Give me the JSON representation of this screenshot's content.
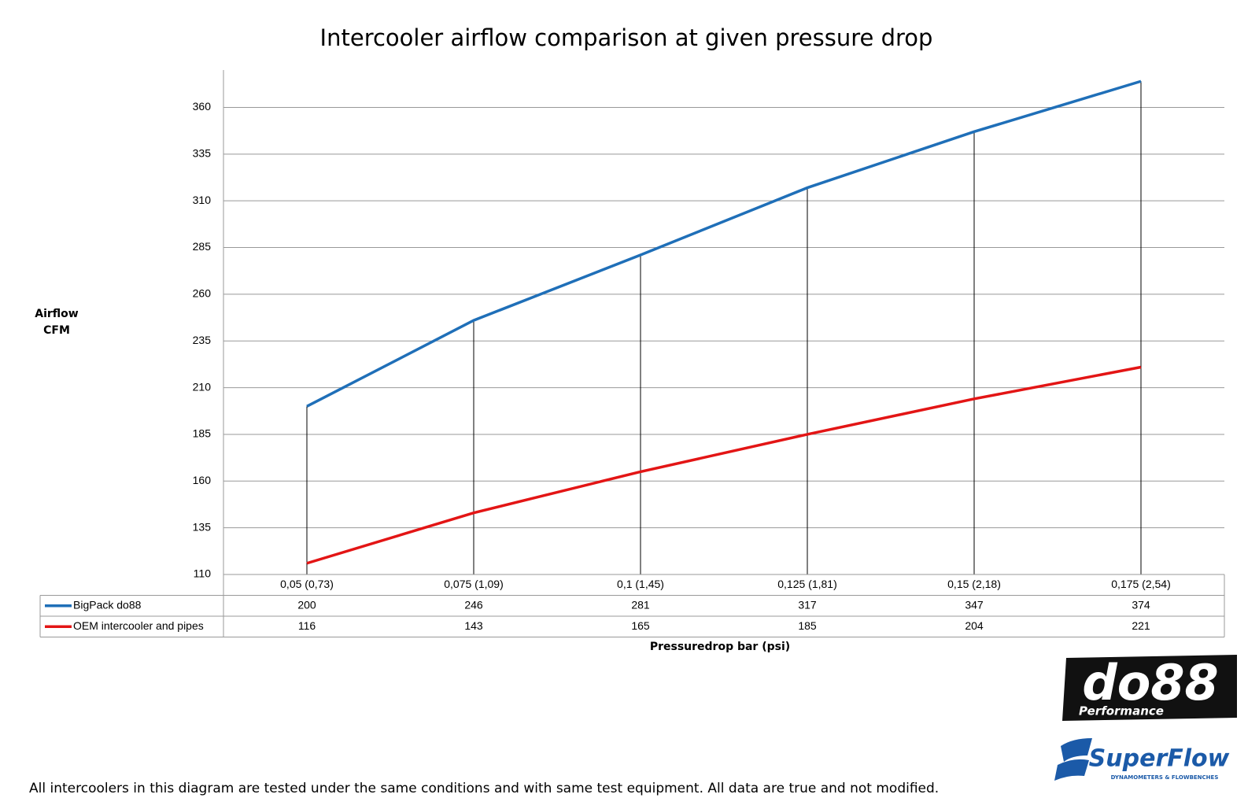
{
  "chart_data": {
    "type": "line",
    "title": "Intercooler airflow comparison at given pressure drop",
    "ylabel": [
      "Airflow",
      "CFM"
    ],
    "xlabel": "Pressuredrop bar (psi)",
    "categories": [
      "0,05 (0,73)",
      "0,075 (1,09)",
      "0,1 (1,45)",
      "0,125 (1,81)",
      "0,15 (2,18)",
      "0,175 (2,54)"
    ],
    "series": [
      {
        "name": "BigPack do88",
        "color": "#1f6fb8",
        "values": [
          200,
          246,
          281,
          317,
          347,
          374
        ]
      },
      {
        "name": "OEM intercooler and pipes",
        "color": "#e31515",
        "values": [
          116,
          143,
          165,
          185,
          204,
          221
        ]
      }
    ],
    "ylim": [
      110,
      380
    ],
    "yticks": [
      110,
      135,
      160,
      185,
      210,
      235,
      260,
      285,
      310,
      335,
      360
    ],
    "grid": true
  },
  "logos": {
    "brand": "do88",
    "brand_sub": "Performance",
    "partner": "SuperFlow",
    "partner_sub": "DYNAMOMETERS & FLOWBENCHES"
  },
  "footer": "All intercoolers in this diagram are tested under the same conditions and with same test equipment. All data are true and not modified."
}
